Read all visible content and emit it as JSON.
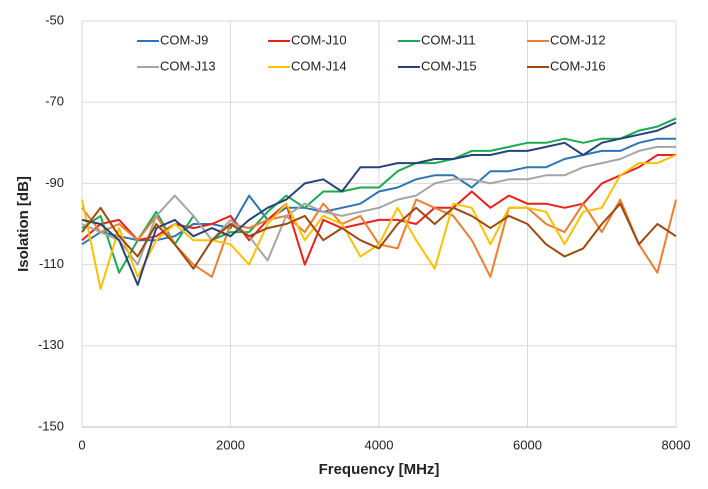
{
  "chart_data": {
    "type": "line",
    "x_label": "Frequency [MHz]",
    "y_label": "Isolation [dB]",
    "xlim": [
      0,
      8000
    ],
    "xticks": [
      0,
      2000,
      4000,
      6000,
      8000
    ],
    "ylim": [
      -150,
      -50
    ],
    "yticks": [
      -150,
      -130,
      -110,
      -90,
      -70,
      -50
    ],
    "grid": true,
    "legend": "top",
    "x": [
      0,
      250,
      500,
      750,
      1000,
      1250,
      1500,
      1750,
      2000,
      2250,
      2500,
      2750,
      3000,
      3250,
      3500,
      3750,
      4000,
      4250,
      4500,
      4750,
      5000,
      5250,
      5500,
      5750,
      6000,
      6250,
      6500,
      6750,
      7000,
      7250,
      7500,
      7750,
      8000
    ],
    "series": [
      {
        "name": "COM-J9",
        "color": "#2e75b6",
        "values": [
          -105,
          -102,
          -103,
          -104,
          -104,
          -103,
          -100,
          -100,
          -101,
          -93,
          -99,
          -96,
          -96,
          -97,
          -96,
          -95,
          -92,
          -91,
          -89,
          -88,
          -88,
          -91,
          -87,
          -87,
          -86,
          -86,
          -84,
          -83,
          -82,
          -82,
          -80,
          -79,
          -79
        ]
      },
      {
        "name": "COM-J10",
        "color": "#e8201e",
        "values": [
          -104,
          -100,
          -99,
          -104,
          -103,
          -100,
          -101,
          -100,
          -98,
          -104,
          -99,
          -95,
          -110,
          -99,
          -101,
          -100,
          -99,
          -99,
          -100,
          -96,
          -96,
          -92,
          -96,
          -93,
          -95,
          -95,
          -96,
          -95,
          -90,
          -88,
          -86,
          -83,
          -83
        ]
      },
      {
        "name": "COM-J11",
        "color": "#1aab4f",
        "values": [
          -101,
          -98,
          -112,
          -104,
          -97,
          -105,
          -98,
          -104,
          -102,
          -102,
          -97,
          -93,
          -96,
          -92,
          -92,
          -91,
          -91,
          -87,
          -85,
          -85,
          -84,
          -82,
          -82,
          -81,
          -80,
          -80,
          -79,
          -80,
          -79,
          -79,
          -77,
          -76,
          -74
        ]
      },
      {
        "name": "COM-J12",
        "color": "#ed7d31",
        "values": [
          -96,
          -102,
          -100,
          -104,
          -98,
          -105,
          -110,
          -113,
          -100,
          -101,
          -99,
          -98,
          -102,
          -95,
          -100,
          -98,
          -105,
          -106,
          -94,
          -96,
          -98,
          -104,
          -113,
          -96,
          -96,
          -100,
          -102,
          -95,
          -102,
          -94,
          -105,
          -112,
          -94
        ]
      },
      {
        "name": "COM-J13",
        "color": "#a5a5a5",
        "values": [
          -100,
          -102,
          -104,
          -110,
          -98,
          -93,
          -98,
          -104,
          -99,
          -103,
          -109,
          -98,
          -95,
          -97,
          -98,
          -97,
          -96,
          -94,
          -93,
          -90,
          -89,
          -89,
          -90,
          -89,
          -89,
          -88,
          -88,
          -86,
          -85,
          -84,
          -82,
          -81,
          -81
        ]
      },
      {
        "name": "COM-J14",
        "color": "#ffc000",
        "values": [
          -94,
          -116,
          -101,
          -113,
          -104,
          -100,
          -104,
          -104,
          -105,
          -110,
          -100,
          -95,
          -104,
          -98,
          -100,
          -108,
          -105,
          -96,
          -104,
          -111,
          -95,
          -96,
          -105,
          -96,
          -96,
          -97,
          -105,
          -97,
          -96,
          -88,
          -85,
          -85,
          -83
        ]
      },
      {
        "name": "COM-J15",
        "color": "#264478",
        "values": [
          -99,
          -100,
          -104,
          -115,
          -101,
          -99,
          -103,
          -101,
          -103,
          -99,
          -96,
          -94,
          -90,
          -89,
          -92,
          -86,
          -86,
          -85,
          -85,
          -84,
          -84,
          -83,
          -83,
          -82,
          -82,
          -81,
          -80,
          -83,
          -80,
          -79,
          -78,
          -77,
          -75
        ]
      },
      {
        "name": "COM-J16",
        "color": "#9e480e",
        "values": [
          -102,
          -96,
          -103,
          -108,
          -100,
          -105,
          -111,
          -104,
          -100,
          -103,
          -101,
          -100,
          -98,
          -104,
          -101,
          -104,
          -106,
          -100,
          -96,
          -100,
          -96,
          -98,
          -101,
          -98,
          -100,
          -105,
          -108,
          -106,
          -100,
          -95,
          -105,
          -100,
          -103
        ]
      }
    ]
  }
}
